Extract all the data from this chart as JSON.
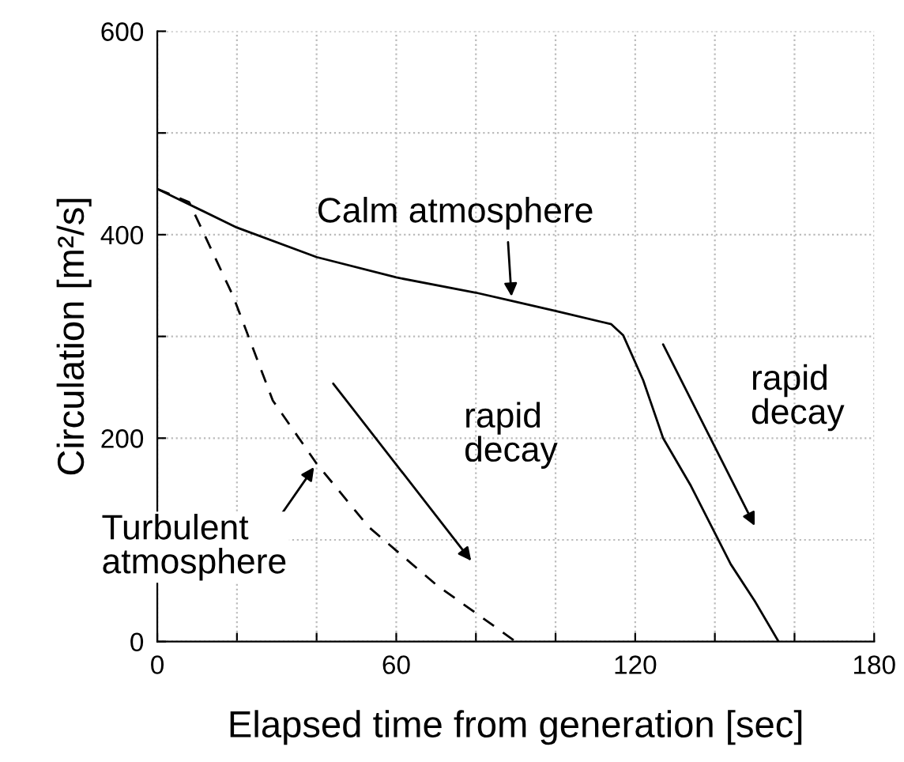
{
  "chart_data": {
    "type": "line",
    "xlabel": "Elapsed time from generation [sec]",
    "ylabel": "Circulation [m²/s]",
    "xlim": [
      0,
      180
    ],
    "ylim": [
      0,
      600
    ],
    "xticks": [
      0,
      {
        "value": 20,
        "label": null
      },
      {
        "value": 40,
        "label": null
      },
      60,
      {
        "value": 80,
        "label": null
      },
      {
        "value": 100,
        "label": null
      },
      120,
      {
        "value": 140,
        "label": null
      },
      {
        "value": 160,
        "label": null
      },
      180
    ],
    "yticks": [
      0,
      {
        "value": 100,
        "label": null
      },
      200,
      {
        "value": 300,
        "label": null
      },
      400,
      {
        "value": 500,
        "label": null
      },
      600
    ],
    "grid": true,
    "legend": false,
    "marker": "none",
    "series": [
      {
        "color": "#000000",
        "line_style": "solid",
        "x": [
          0,
          20,
          40,
          60,
          80,
          89,
          100,
          114,
          117,
          122,
          127,
          134,
          144,
          150,
          156
        ],
        "values": [
          445,
          407,
          378,
          358,
          343,
          335,
          325,
          312,
          301,
          257,
          200,
          153,
          76,
          40,
          0
        ]
      },
      {
        "color": "#000000",
        "line_style": "dashed",
        "x": [
          0,
          8,
          19,
          29,
          40,
          53,
          70,
          80,
          90
        ],
        "values": [
          445,
          432,
          340,
          237,
          175,
          113,
          56,
          28,
          0
        ]
      }
    ],
    "annotations": [
      {
        "text": "Calm atmosphere",
        "x": 89,
        "y": 335
      },
      {
        "text": "Turbulent atmosphere",
        "x": 40,
        "y": 175
      },
      "rapid decay",
      "rapid decay"
    ]
  }
}
